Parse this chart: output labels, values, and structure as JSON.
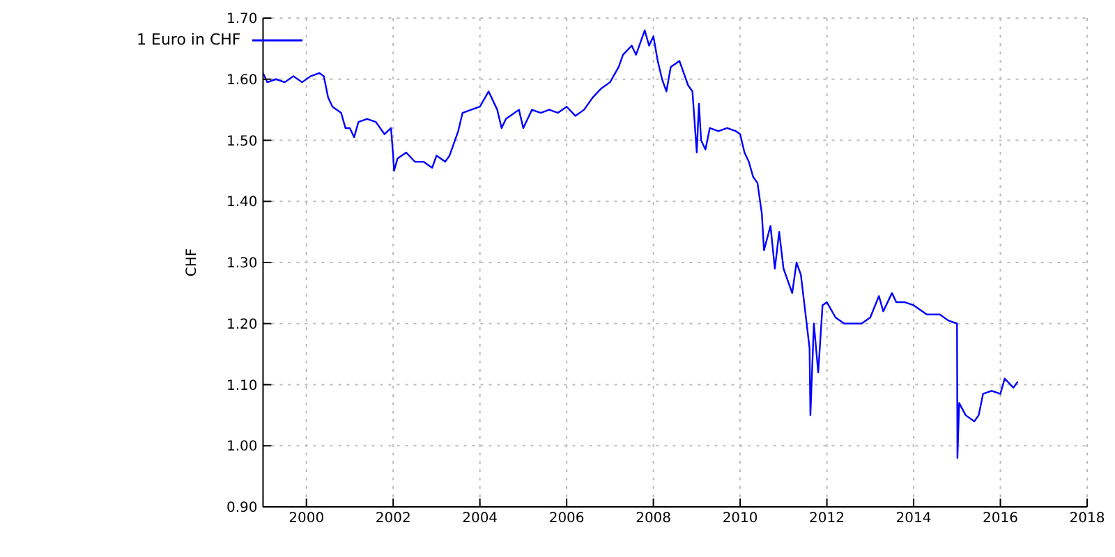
{
  "chart_data": {
    "type": "line",
    "ylabel": "CHF",
    "legend": "top left",
    "grid": true,
    "marker": "none",
    "line_style": "solid",
    "xlim": [
      1999,
      2018
    ],
    "xticks": [
      2000,
      2002,
      2004,
      2006,
      2008,
      2010,
      2012,
      2014,
      2016,
      2018
    ],
    "ylim": [
      0.9,
      1.7
    ],
    "yticks": [
      {
        "value": 0.9,
        "label": "0.90"
      },
      {
        "value": 1.0,
        "label": "1.00"
      },
      {
        "value": 1.1,
        "label": "1.10"
      },
      {
        "value": 1.2,
        "label": "1.20"
      },
      {
        "value": 1.3,
        "label": "1.30"
      },
      {
        "value": 1.4,
        "label": "1.40"
      },
      {
        "value": 1.5,
        "label": "1.50"
      },
      {
        "value": 1.6,
        "label": "1.60"
      },
      {
        "value": 1.7,
        "label": "1.70"
      }
    ],
    "x": [
      1999.0,
      1999.1,
      1999.3,
      1999.5,
      1999.7,
      1999.9,
      2000.1,
      2000.3,
      2000.4,
      2000.5,
      2000.6,
      2000.8,
      2000.9,
      2001.0,
      2001.1,
      2001.2,
      2001.4,
      2001.6,
      2001.8,
      2001.95,
      2002.0,
      2002.02,
      2002.1,
      2002.3,
      2002.5,
      2002.7,
      2002.9,
      2003.0,
      2003.2,
      2003.3,
      2003.5,
      2003.6,
      2003.8,
      2004.0,
      2004.2,
      2004.4,
      2004.5,
      2004.6,
      2004.8,
      2004.9,
      2005.0,
      2005.2,
      2005.4,
      2005.6,
      2005.8,
      2006.0,
      2006.2,
      2006.4,
      2006.6,
      2006.8,
      2007.0,
      2007.2,
      2007.3,
      2007.5,
      2007.6,
      2007.8,
      2007.9,
      2008.0,
      2008.1,
      2008.2,
      2008.3,
      2008.4,
      2008.6,
      2008.8,
      2008.9,
      2009.0,
      2009.05,
      2009.1,
      2009.2,
      2009.3,
      2009.5,
      2009.7,
      2009.9,
      2010.0,
      2010.1,
      2010.2,
      2010.3,
      2010.4,
      2010.5,
      2010.55,
      2010.7,
      2010.8,
      2010.9,
      2011.0,
      2011.2,
      2011.3,
      2011.4,
      2011.5,
      2011.6,
      2011.62,
      2011.7,
      2011.8,
      2011.9,
      2012.0,
      2012.2,
      2012.4,
      2012.8,
      2013.0,
      2013.2,
      2013.3,
      2013.5,
      2013.6,
      2013.8,
      2014.0,
      2014.3,
      2014.6,
      2014.8,
      2015.0,
      2015.01,
      2015.05,
      2015.2,
      2015.4,
      2015.5,
      2015.6,
      2015.8,
      2016.0,
      2016.1,
      2016.3,
      2016.4
    ],
    "series": [
      {
        "name": "1 Euro in CHF",
        "color": "#0000ff",
        "values": [
          1.61,
          1.595,
          1.6,
          1.595,
          1.605,
          1.595,
          1.605,
          1.61,
          1.605,
          1.57,
          1.555,
          1.545,
          1.52,
          1.52,
          1.505,
          1.53,
          1.535,
          1.53,
          1.51,
          1.52,
          1.475,
          1.45,
          1.47,
          1.48,
          1.465,
          1.465,
          1.455,
          1.475,
          1.465,
          1.475,
          1.515,
          1.545,
          1.55,
          1.555,
          1.58,
          1.55,
          1.52,
          1.535,
          1.545,
          1.55,
          1.52,
          1.55,
          1.545,
          1.55,
          1.545,
          1.555,
          1.54,
          1.55,
          1.57,
          1.585,
          1.595,
          1.62,
          1.64,
          1.655,
          1.64,
          1.68,
          1.655,
          1.67,
          1.63,
          1.6,
          1.58,
          1.62,
          1.63,
          1.59,
          1.58,
          1.48,
          1.56,
          1.5,
          1.485,
          1.52,
          1.515,
          1.52,
          1.515,
          1.51,
          1.48,
          1.465,
          1.44,
          1.43,
          1.38,
          1.32,
          1.36,
          1.29,
          1.35,
          1.29,
          1.25,
          1.3,
          1.28,
          1.22,
          1.16,
          1.05,
          1.2,
          1.12,
          1.23,
          1.235,
          1.21,
          1.2,
          1.2,
          1.21,
          1.245,
          1.22,
          1.25,
          1.235,
          1.235,
          1.23,
          1.215,
          1.215,
          1.205,
          1.2,
          0.98,
          1.07,
          1.05,
          1.04,
          1.05,
          1.085,
          1.09,
          1.085,
          1.11,
          1.095,
          1.105
        ]
      }
    ]
  }
}
